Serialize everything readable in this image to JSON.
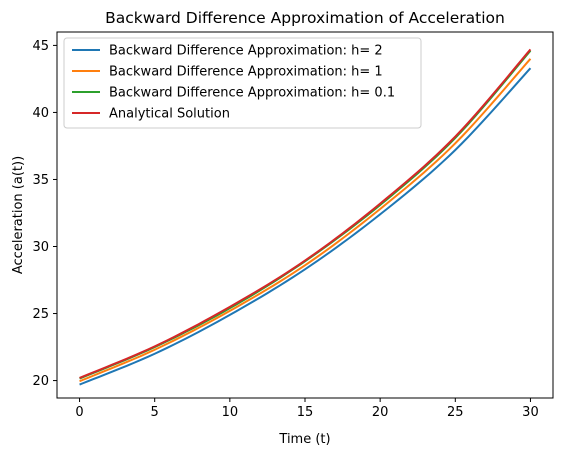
{
  "chart_data": {
    "type": "line",
    "title": "Backward Difference Approximation of Acceleration",
    "xlabel": "Time (t)",
    "ylabel": "Acceleration (a(t))",
    "xlim": [
      -1.5,
      31.5
    ],
    "ylim": [
      18.7,
      46.0
    ],
    "xticks": [
      0,
      5,
      10,
      15,
      20,
      25,
      30
    ],
    "yticks": [
      20,
      25,
      30,
      35,
      40,
      45
    ],
    "xtick_labels": [
      "0",
      "5",
      "10",
      "15",
      "20",
      "25",
      "30"
    ],
    "ytick_labels": [
      "20",
      "25",
      "30",
      "35",
      "40",
      "45"
    ],
    "grid": false,
    "legend_position": "top-left",
    "series": [
      {
        "name": "Backward Difference Approximation: h= 2",
        "color": "#1f77b4",
        "x": [
          0,
          5,
          10,
          15,
          20,
          25,
          30
        ],
        "y": [
          19.7,
          22.0,
          24.9,
          28.3,
          32.4,
          37.2,
          43.3
        ]
      },
      {
        "name": "Backward Difference Approximation: h= 1",
        "color": "#ff7f0e",
        "x": [
          0,
          5,
          10,
          15,
          20,
          25,
          30
        ],
        "y": [
          19.95,
          22.3,
          25.2,
          28.6,
          32.8,
          37.7,
          44.0
        ]
      },
      {
        "name": "Backward Difference Approximation: h= 0.1",
        "color": "#2ca02c",
        "x": [
          0,
          5,
          10,
          15,
          20,
          25,
          30
        ],
        "y": [
          20.15,
          22.5,
          25.4,
          28.9,
          33.1,
          38.1,
          44.6
        ]
      },
      {
        "name": "Analytical Solution",
        "color": "#d62728",
        "x": [
          0,
          5,
          10,
          15,
          20,
          25,
          30
        ],
        "y": [
          20.2,
          22.55,
          25.5,
          28.95,
          33.2,
          38.2,
          44.7
        ]
      }
    ]
  }
}
